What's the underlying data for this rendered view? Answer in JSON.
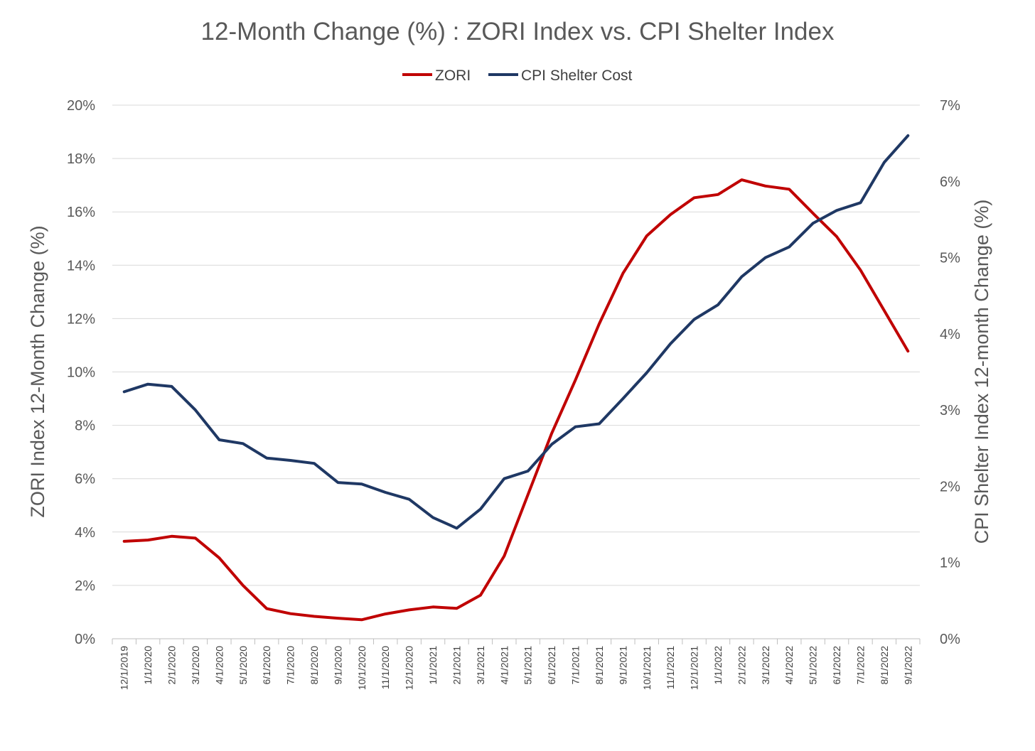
{
  "chart_data": {
    "type": "line",
    "title": "12-Month Change (%) : ZORI Index vs. CPI Shelter Index",
    "legend_position": "top-center",
    "grid": true,
    "x": [
      "12/1/2019",
      "1/1/2020",
      "2/1/2020",
      "3/1/2020",
      "4/1/2020",
      "5/1/2020",
      "6/1/2020",
      "7/1/2020",
      "8/1/2020",
      "9/1/2020",
      "10/1/2020",
      "11/1/2020",
      "12/1/2020",
      "1/1/2021",
      "2/1/2021",
      "3/1/2021",
      "4/1/2021",
      "5/1/2021",
      "6/1/2021",
      "7/1/2021",
      "8/1/2021",
      "9/1/2021",
      "10/1/2021",
      "11/1/2021",
      "12/1/2021",
      "1/1/2022",
      "2/1/2022",
      "3/1/2022",
      "4/1/2022",
      "5/1/2022",
      "6/1/2022",
      "7/1/2022",
      "8/1/2022",
      "9/1/2022"
    ],
    "y_left": {
      "label": "ZORI Index 12-Month Change (%)",
      "lim": [
        0,
        20
      ],
      "ticks": [
        0,
        2,
        4,
        6,
        8,
        10,
        12,
        14,
        16,
        18,
        20
      ],
      "tick_labels": [
        "0%",
        "2%",
        "4%",
        "6%",
        "8%",
        "10%",
        "12%",
        "14%",
        "16%",
        "18%",
        "20%"
      ]
    },
    "y_right": {
      "label": "CPI Shelter Index 12-month Change (%)",
      "lim": [
        0,
        7
      ],
      "ticks": [
        0,
        1,
        2,
        3,
        4,
        5,
        6,
        7
      ],
      "tick_labels": [
        "0%",
        "1%",
        "2%",
        "3%",
        "4%",
        "5%",
        "6%",
        "7%"
      ]
    },
    "series": [
      {
        "name": "ZORI",
        "axis": "left",
        "color": "#c00000",
        "values": [
          3.65,
          3.7,
          3.84,
          3.77,
          3.03,
          2.0,
          1.13,
          0.94,
          0.84,
          0.77,
          0.71,
          0.93,
          1.08,
          1.19,
          1.14,
          1.63,
          3.1,
          5.4,
          7.7,
          9.7,
          11.8,
          13.7,
          15.1,
          15.9,
          16.53,
          16.65,
          17.2,
          16.97,
          16.85,
          15.95,
          15.07,
          13.82,
          12.3,
          10.78
        ]
      },
      {
        "name": "CPI Shelter Cost",
        "axis": "right",
        "color": "#1f3864",
        "values": [
          3.24,
          3.34,
          3.31,
          3.0,
          2.61,
          2.56,
          2.37,
          2.34,
          2.3,
          2.05,
          2.03,
          1.92,
          1.83,
          1.59,
          1.45,
          1.7,
          2.1,
          2.2,
          2.55,
          2.78,
          2.82,
          3.15,
          3.49,
          3.87,
          4.19,
          4.38,
          4.75,
          5.0,
          5.14,
          5.45,
          5.62,
          5.72,
          6.25,
          6.6
        ]
      }
    ]
  }
}
